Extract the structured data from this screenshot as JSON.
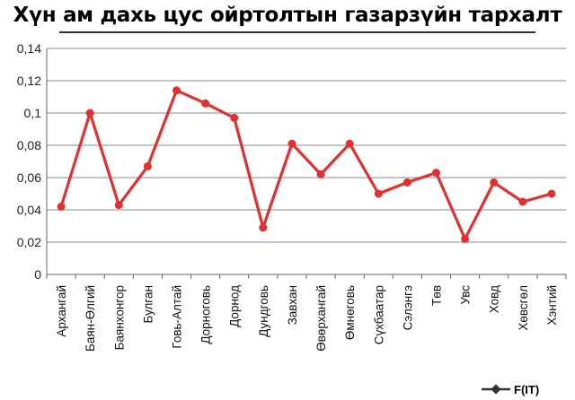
{
  "chart_data": {
    "type": "line",
    "title": "Хүн ам дахь цус ойртолтын газарзүйн тархалт",
    "categories": [
      "Архангай",
      "Баян-Өлгий",
      "Баянхонгор",
      "Булган",
      "Говь-Алтай",
      "Дорноговь",
      "Дорнод",
      "Дундговь",
      "Завхан",
      "Өвөрхангай",
      "Өмнөговь",
      "Сүхбаатар",
      "Сэлэнгэ",
      "Төв",
      "Увс",
      "Ховд",
      "Хөвсгөл",
      "Хэнтий"
    ],
    "series": [
      {
        "name": "F(IT)",
        "values": [
          0.042,
          0.1,
          0.043,
          0.067,
          0.114,
          0.106,
          0.097,
          0.029,
          0.081,
          0.062,
          0.081,
          0.05,
          0.057,
          0.063,
          0.022,
          0.057,
          0.045,
          0.05
        ]
      }
    ],
    "yticks": [
      "0",
      "0,02",
      "0,04",
      "0,06",
      "0,08",
      "0,1",
      "0,12",
      "0,14"
    ],
    "ylim": [
      0,
      0.14
    ],
    "grid": true,
    "legend_position": "bottom-right",
    "series_color": "#e03030"
  }
}
